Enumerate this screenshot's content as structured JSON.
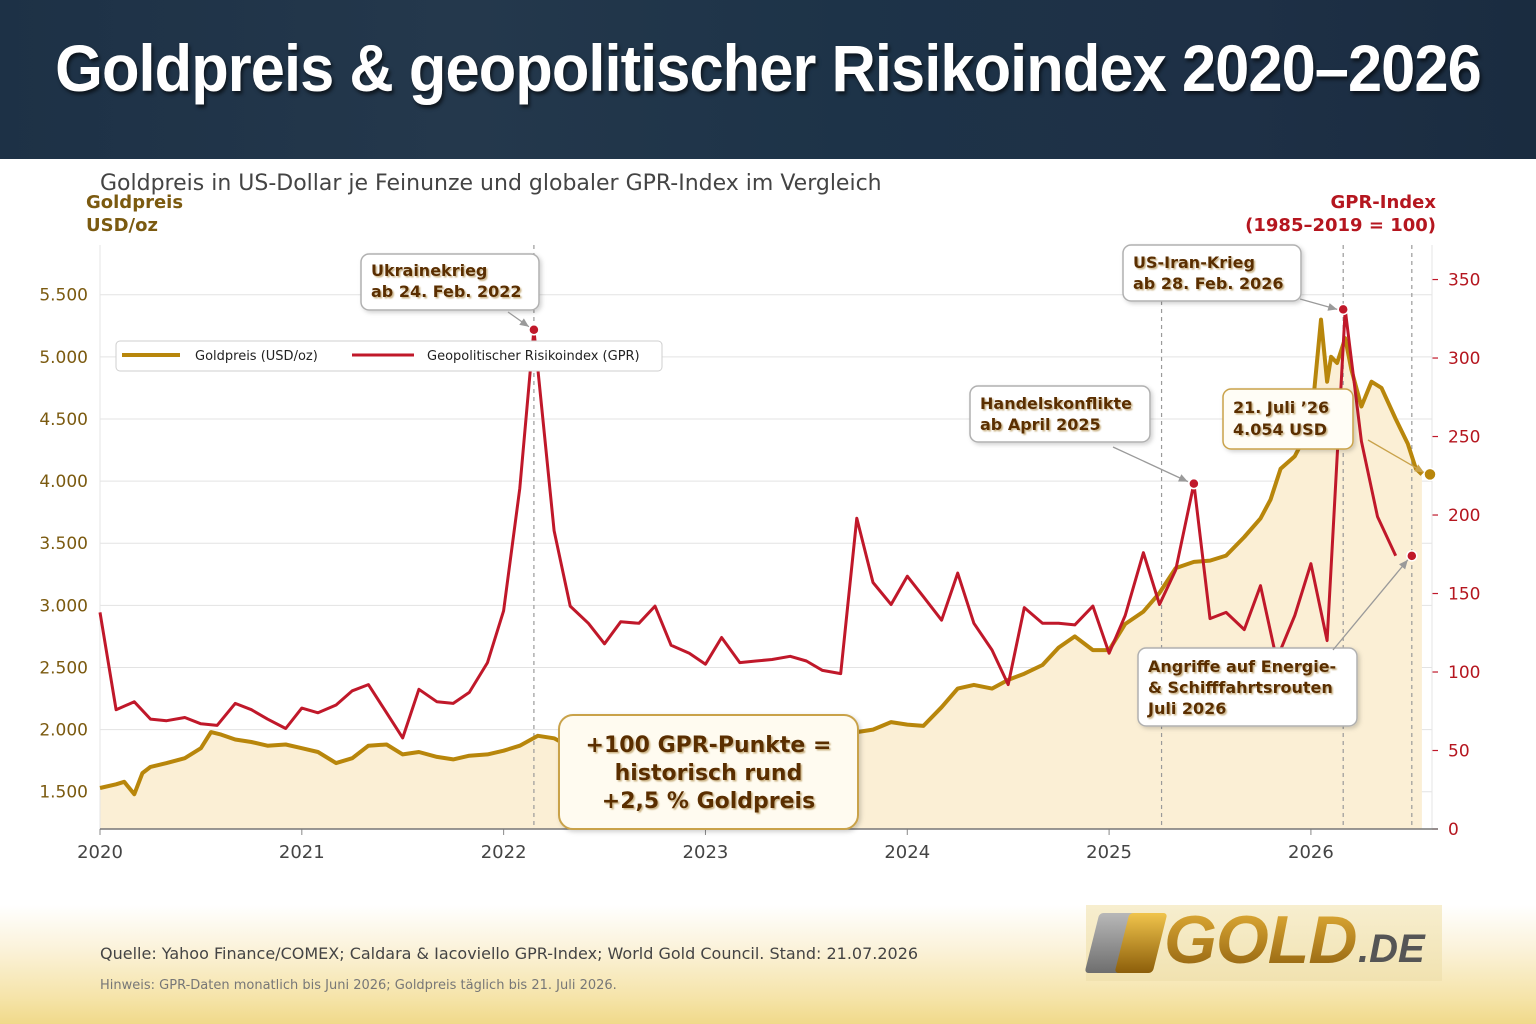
{
  "header": {
    "title": "Goldpreis & geopolitischer Risikoindex 2020–2026"
  },
  "subtitle": "Goldpreis in US-Dollar je Feinunze und globaler GPR-Index im Vergleich",
  "colors": {
    "gold": "#b8860b",
    "gold_fill": "#fbefd5",
    "gpr": "#c0182a",
    "gold_text": "#7b5a10",
    "gpr_text": "#b5161f",
    "annotation_text": "#5a2d00"
  },
  "chart_data": {
    "type": "line",
    "title": "",
    "ylabel_left": [
      "Goldpreis",
      "USD/oz"
    ],
    "ylabel_right": [
      "GPR-Index",
      "(1985–2019 = 100)"
    ],
    "xlim": [
      2020,
      2026.6
    ],
    "ylim_left": [
      1200,
      5900
    ],
    "ylim_right": [
      0,
      372
    ],
    "x_ticks": [
      {
        "value": 2020,
        "label": "2020"
      },
      {
        "value": 2021,
        "label": "2021"
      },
      {
        "value": 2022,
        "label": "2022"
      },
      {
        "value": 2023,
        "label": "2023"
      },
      {
        "value": 2024,
        "label": "2024"
      },
      {
        "value": 2025,
        "label": "2025"
      },
      {
        "value": 2026,
        "label": "2026"
      }
    ],
    "y_left_ticks": [
      {
        "value": 1500,
        "label": "1.500"
      },
      {
        "value": 2000,
        "label": "2.000"
      },
      {
        "value": 2500,
        "label": "2.500"
      },
      {
        "value": 3000,
        "label": "3.000"
      },
      {
        "value": 3500,
        "label": "3.500"
      },
      {
        "value": 4000,
        "label": "4.000"
      },
      {
        "value": 4500,
        "label": "4.500"
      },
      {
        "value": 5000,
        "label": "5.000"
      },
      {
        "value": 5500,
        "label": "5.500"
      }
    ],
    "y_right_ticks": [
      {
        "value": 0,
        "label": "0"
      },
      {
        "value": 50,
        "label": "50"
      },
      {
        "value": 100,
        "label": "100"
      },
      {
        "value": 150,
        "label": "150"
      },
      {
        "value": 200,
        "label": "200"
      },
      {
        "value": 250,
        "label": "250"
      },
      {
        "value": 300,
        "label": "300"
      },
      {
        "value": 350,
        "label": "350"
      }
    ],
    "grid": true,
    "legend": {
      "placement": "top-left",
      "entries": [
        "Goldpreis (USD/oz)",
        "Geopolitischer Risikoindex (GPR)"
      ]
    },
    "series": [
      {
        "name": "Goldpreis (USD/oz)",
        "axis": "left",
        "style": "area",
        "x": [
          2020.0,
          2020.08,
          2020.12,
          2020.17,
          2020.21,
          2020.25,
          2020.33,
          2020.42,
          2020.5,
          2020.55,
          2020.6,
          2020.67,
          2020.75,
          2020.83,
          2020.92,
          2021.0,
          2021.08,
          2021.17,
          2021.25,
          2021.33,
          2021.42,
          2021.5,
          2021.58,
          2021.67,
          2021.75,
          2021.83,
          2021.92,
          2022.0,
          2022.08,
          2022.17,
          2022.25,
          2022.33,
          2022.42,
          2022.5,
          2022.58,
          2022.67,
          2022.75,
          2022.83,
          2022.92,
          2023.0,
          2023.08,
          2023.17,
          2023.25,
          2023.33,
          2023.42,
          2023.5,
          2023.58,
          2023.67,
          2023.75,
          2023.83,
          2023.92,
          2024.0,
          2024.08,
          2024.17,
          2024.25,
          2024.33,
          2024.42,
          2024.5,
          2024.58,
          2024.67,
          2024.75,
          2024.83,
          2024.92,
          2025.0,
          2025.08,
          2025.17,
          2025.25,
          2025.33,
          2025.42,
          2025.5,
          2025.58,
          2025.67,
          2025.75,
          2025.8,
          2025.85,
          2025.92,
          2026.0,
          2026.05,
          2026.08,
          2026.1,
          2026.13,
          2026.17,
          2026.2,
          2026.25,
          2026.3,
          2026.35,
          2026.42,
          2026.48,
          2026.52,
          2026.55
        ],
        "y": [
          1530,
          1560,
          1580,
          1480,
          1650,
          1700,
          1730,
          1770,
          1850,
          1980,
          1960,
          1920,
          1900,
          1870,
          1880,
          1850,
          1820,
          1730,
          1770,
          1870,
          1880,
          1800,
          1820,
          1780,
          1760,
          1790,
          1800,
          1830,
          1870,
          1950,
          1930,
          1860,
          1840,
          1740,
          1780,
          1730,
          1660,
          1700,
          1800,
          1900,
          1870,
          1940,
          2000,
          1990,
          1950,
          1960,
          1940,
          1930,
          1980,
          2000,
          2060,
          2040,
          2030,
          2180,
          2330,
          2360,
          2330,
          2400,
          2450,
          2520,
          2660,
          2750,
          2640,
          2640,
          2850,
          2950,
          3100,
          3300,
          3350,
          3360,
          3400,
          3550,
          3700,
          3850,
          4100,
          4200,
          4450,
          5300,
          4800,
          5000,
          4950,
          5150,
          4900,
          4600,
          4800,
          4750,
          4500,
          4300,
          4100,
          4054
        ]
      },
      {
        "name": "Geopolitischer Risikoindex (GPR)",
        "axis": "right",
        "style": "line",
        "x": [
          2020.0,
          2020.08,
          2020.17,
          2020.25,
          2020.33,
          2020.42,
          2020.5,
          2020.58,
          2020.67,
          2020.75,
          2020.83,
          2020.92,
          2021.0,
          2021.08,
          2021.17,
          2021.25,
          2021.33,
          2021.42,
          2021.5,
          2021.58,
          2021.67,
          2021.75,
          2021.83,
          2021.92,
          2022.0,
          2022.08,
          2022.15,
          2022.25,
          2022.33,
          2022.42,
          2022.5,
          2022.58,
          2022.67,
          2022.75,
          2022.83,
          2022.92,
          2023.0,
          2023.08,
          2023.17,
          2023.25,
          2023.33,
          2023.42,
          2023.5,
          2023.58,
          2023.67,
          2023.75,
          2023.83,
          2023.92,
          2024.0,
          2024.08,
          2024.17,
          2024.25,
          2024.33,
          2024.42,
          2024.5,
          2024.58,
          2024.67,
          2024.75,
          2024.83,
          2024.92,
          2025.0,
          2025.08,
          2025.17,
          2025.25,
          2025.33,
          2025.42,
          2025.5,
          2025.58,
          2025.67,
          2025.75,
          2025.83,
          2025.92,
          2026.0,
          2026.08,
          2026.17,
          2026.25,
          2026.33,
          2026.42
        ],
        "y": [
          138,
          76,
          81,
          70,
          69,
          71,
          67,
          66,
          80,
          76,
          70,
          64,
          77,
          74,
          79,
          88,
          92,
          74,
          58,
          89,
          81,
          80,
          87,
          106,
          139,
          217,
          318,
          190,
          142,
          131,
          118,
          132,
          131,
          142,
          117,
          112,
          105,
          122,
          106,
          107,
          108,
          110,
          107,
          101,
          99,
          198,
          157,
          143,
          161,
          148,
          133,
          163,
          131,
          114,
          92,
          141,
          131,
          131,
          130,
          142,
          112,
          136,
          176,
          143,
          165,
          220,
          134,
          138,
          127,
          155,
          108,
          136,
          169,
          120,
          331,
          247,
          199,
          174
        ]
      }
    ],
    "annotations": [
      {
        "id": "ukraine",
        "lines": [
          "Ukrainekrieg",
          "ab 24. Feb. 2022"
        ]
      },
      {
        "id": "iran",
        "lines": [
          "US-Iran-Krieg",
          "ab 28. Feb. 2026"
        ]
      },
      {
        "id": "handel",
        "lines": [
          "Handelskonflikte",
          "ab April 2025"
        ]
      },
      {
        "id": "latest",
        "lines": [
          "21. Juli ’26",
          "4.054 USD"
        ]
      },
      {
        "id": "energie",
        "lines": [
          "Angriffe auf Energie-",
          "& Schifffahrtsrouten",
          "Juli 2026"
        ]
      },
      {
        "id": "rule",
        "lines": [
          "+100 GPR-Punkte =",
          "historisch rund",
          "+2,5 % Goldpreis"
        ]
      }
    ],
    "event_lines": [
      2022.15,
      2025.26,
      2026.16,
      2026.5
    ]
  },
  "footer": {
    "source": "Quelle: Yahoo Finance/COMEX; Caldara & Iacoviello GPR-Index; World Gold Council.  Stand: 21.07.2026",
    "note": "Hinweis: GPR-Daten monatlich bis Juni 2026; Goldpreis täglich bis 21. Juli 2026.",
    "logo_main": "GOLD",
    "logo_domain": ".DE"
  }
}
